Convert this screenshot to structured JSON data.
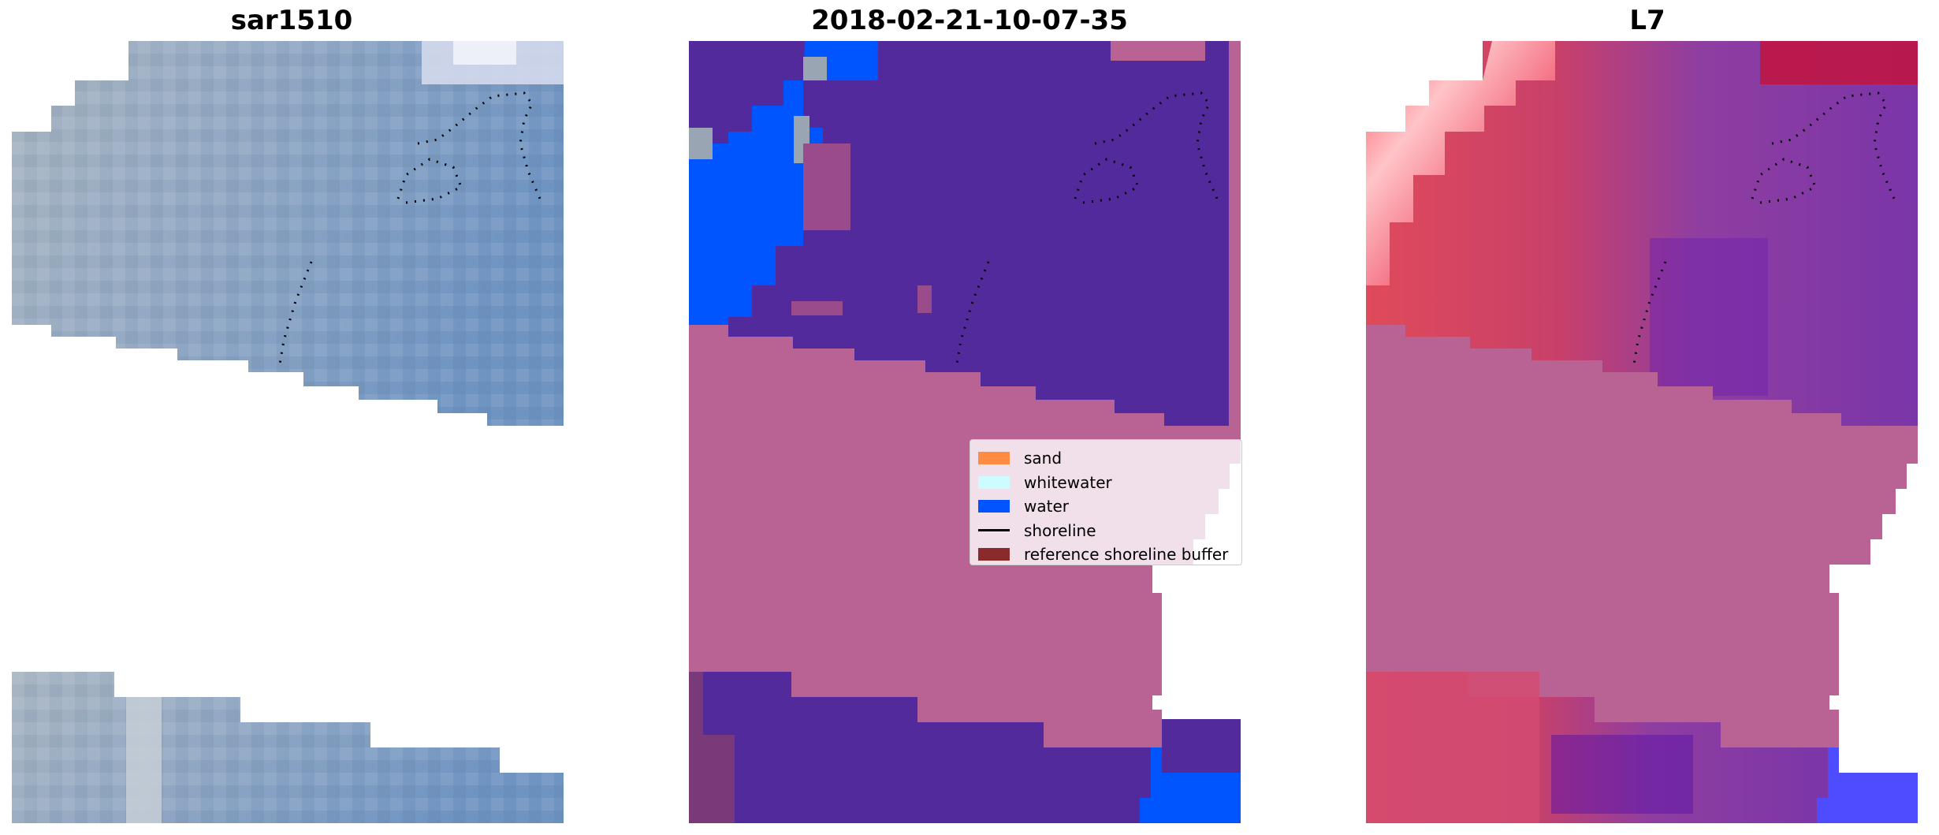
{
  "panels": [
    {
      "title": "sar1510"
    },
    {
      "title": "2018-02-21-10-07-35"
    },
    {
      "title": "L7"
    }
  ],
  "legend": {
    "items": [
      {
        "label": "sand",
        "color": "#ff8c40",
        "kind": "patch"
      },
      {
        "label": "whitewater",
        "color": "#cdfbff",
        "kind": "patch"
      },
      {
        "label": "water",
        "color": "#0055ff",
        "kind": "patch"
      },
      {
        "label": "shoreline",
        "color": "#000000",
        "kind": "line"
      },
      {
        "label": "reference shoreline buffer",
        "color": "#8b2a2a",
        "kind": "patch"
      }
    ]
  },
  "colors": {
    "rgb_blue": "#7d9bbf",
    "rgb_gray": "#a3b1bd",
    "classified_land": "#522a9b",
    "classified_buffer": "#b96394",
    "classified_water": "#0055ff",
    "l7_red": "#d9465f",
    "l7_purple": "#7a3ba4",
    "l7_pink": "#f08a9a"
  }
}
